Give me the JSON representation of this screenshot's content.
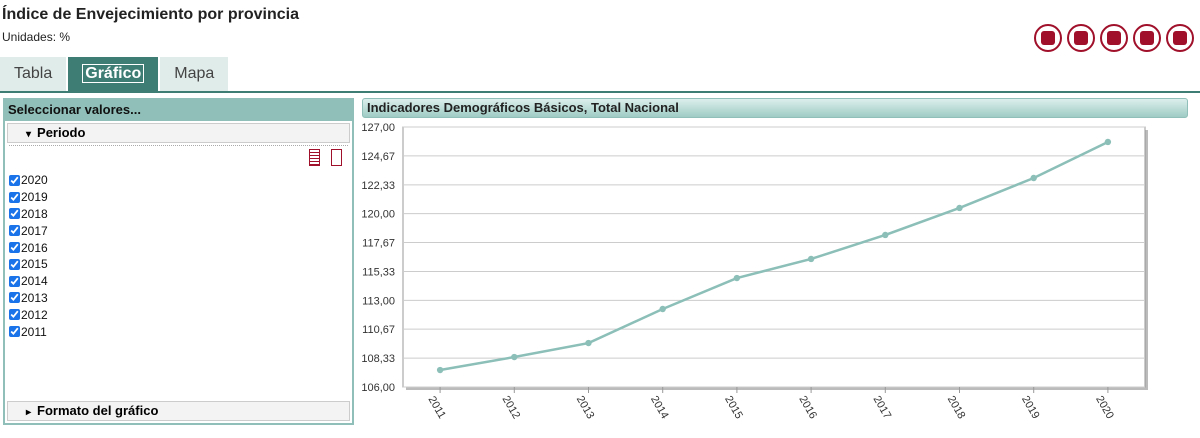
{
  "header": {
    "title": "Índice de Envejecimiento por provincia",
    "units": "Unidades:  %"
  },
  "tabs": {
    "items": [
      "Tabla",
      "Gráfico",
      "Mapa"
    ],
    "active": 1
  },
  "panel": {
    "title": "Seleccionar valores...",
    "section": "Periodo",
    "items": [
      {
        "label": "2020",
        "checked": true
      },
      {
        "label": "2019",
        "checked": true
      },
      {
        "label": "2018",
        "checked": true
      },
      {
        "label": "2017",
        "checked": true
      },
      {
        "label": "2016",
        "checked": true
      },
      {
        "label": "2015",
        "checked": true
      },
      {
        "label": "2014",
        "checked": true
      },
      {
        "label": "2013",
        "checked": true
      },
      {
        "label": "2012",
        "checked": true
      },
      {
        "label": "2011",
        "checked": true
      }
    ],
    "footer": "Formato del gráfico"
  },
  "chart_data": {
    "type": "line",
    "title": "Indicadores Demográficos Básicos, Total Nacional",
    "categories": [
      "2011",
      "2012",
      "2013",
      "2014",
      "2015",
      "2016",
      "2017",
      "2018",
      "2019",
      "2020"
    ],
    "values": [
      107.37,
      108.42,
      109.55,
      112.3,
      114.8,
      116.34,
      118.28,
      120.46,
      122.88,
      125.79
    ],
    "color": "#8bbfb8",
    "ylim": [
      106,
      127
    ],
    "yticks": [
      {
        "value": 106,
        "label": "106,00"
      },
      {
        "value": 108.33,
        "label": "108,33"
      },
      {
        "value": 110.67,
        "label": "110,67"
      },
      {
        "value": 113,
        "label": "113,00"
      },
      {
        "value": 115.33,
        "label": "115,33"
      },
      {
        "value": 117.67,
        "label": "117,67"
      },
      {
        "value": 120,
        "label": "120,00"
      },
      {
        "value": 122.33,
        "label": "122,33"
      },
      {
        "value": 124.67,
        "label": "124,67"
      },
      {
        "value": 127,
        "label": "127,00"
      }
    ],
    "grid": true
  }
}
